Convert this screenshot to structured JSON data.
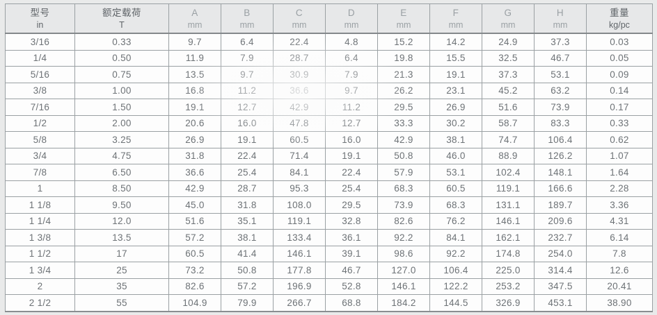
{
  "table": {
    "columns": [
      {
        "key": "model",
        "label": "型号",
        "sub": "in",
        "emphasis": "dark"
      },
      {
        "key": "rated-load",
        "label": "额定载荷",
        "sub": "T",
        "emphasis": "dark"
      },
      {
        "key": "a",
        "label": "A",
        "sub": "mm",
        "emphasis": "light"
      },
      {
        "key": "b",
        "label": "B",
        "sub": "mm",
        "emphasis": "light"
      },
      {
        "key": "c",
        "label": "C",
        "sub": "mm",
        "emphasis": "light"
      },
      {
        "key": "d",
        "label": "D",
        "sub": "mm",
        "emphasis": "light"
      },
      {
        "key": "e",
        "label": "E",
        "sub": "mm",
        "emphasis": "light"
      },
      {
        "key": "f",
        "label": "F",
        "sub": "mm",
        "emphasis": "light"
      },
      {
        "key": "g",
        "label": "G",
        "sub": "mm",
        "emphasis": "light"
      },
      {
        "key": "h",
        "label": "H",
        "sub": "mm",
        "emphasis": "light"
      },
      {
        "key": "weight",
        "label": "重量",
        "sub": "kg/pc",
        "emphasis": "dark"
      }
    ],
    "rows": [
      [
        "3/16",
        "0.33",
        "9.7",
        "6.4",
        "22.4",
        "4.8",
        "15.2",
        "14.2",
        "24.9",
        "37.3",
        "0.03"
      ],
      [
        "1/4",
        "0.50",
        "11.9",
        "7.9",
        "28.7",
        "6.4",
        "19.8",
        "15.5",
        "32.5",
        "46.7",
        "0.05"
      ],
      [
        "5/16",
        "0.75",
        "13.5",
        "9.7",
        "30.9",
        "7.9",
        "21.3",
        "19.1",
        "37.3",
        "53.1",
        "0.09"
      ],
      [
        "3/8",
        "1.00",
        "16.8",
        "11.2",
        "36.6",
        "9.7",
        "26.2",
        "23.1",
        "45.2",
        "63.2",
        "0.14"
      ],
      [
        "7/16",
        "1.50",
        "19.1",
        "12.7",
        "42.9",
        "11.2",
        "29.5",
        "26.9",
        "51.6",
        "73.9",
        "0.17"
      ],
      [
        "1/2",
        "2.00",
        "20.6",
        "16.0",
        "47.8",
        "12.7",
        "33.3",
        "30.2",
        "58.7",
        "83.3",
        "0.33"
      ],
      [
        "5/8",
        "3.25",
        "26.9",
        "19.1",
        "60.5",
        "16.0",
        "42.9",
        "38.1",
        "74.7",
        "106.4",
        "0.62"
      ],
      [
        "3/4",
        "4.75",
        "31.8",
        "22.4",
        "71.4",
        "19.1",
        "50.8",
        "46.0",
        "88.9",
        "126.2",
        "1.07"
      ],
      [
        "7/8",
        "6.50",
        "36.6",
        "25.4",
        "84.1",
        "22.4",
        "57.9",
        "53.1",
        "102.4",
        "148.1",
        "1.64"
      ],
      [
        "1",
        "8.50",
        "42.9",
        "28.7",
        "95.3",
        "25.4",
        "68.3",
        "60.5",
        "119.1",
        "166.6",
        "2.28"
      ],
      [
        "1 1/8",
        "9.50",
        "45.0",
        "31.8",
        "108.0",
        "29.5",
        "73.9",
        "68.3",
        "131.1",
        "189.7",
        "3.36"
      ],
      [
        "1 1/4",
        "12.0",
        "51.6",
        "35.1",
        "119.1",
        "32.8",
        "82.6",
        "76.2",
        "146.1",
        "209.6",
        "4.31"
      ],
      [
        "1 3/8",
        "13.5",
        "57.2",
        "38.1",
        "133.4",
        "36.1",
        "92.2",
        "84.1",
        "162.1",
        "232.7",
        "6.14"
      ],
      [
        "1 1/2",
        "17",
        "60.5",
        "41.4",
        "146.1",
        "39.1",
        "98.6",
        "92.2",
        "174.8",
        "254.0",
        "7.8"
      ],
      [
        "1 3/4",
        "25",
        "73.2",
        "50.8",
        "177.8",
        "46.7",
        "127.0",
        "106.4",
        "225.0",
        "314.4",
        "12.6"
      ],
      [
        "2",
        "35",
        "82.6",
        "57.2",
        "196.9",
        "52.8",
        "146.1",
        "122.2",
        "253.2",
        "347.5",
        "20.41"
      ],
      [
        "2 1/2",
        "55",
        "104.9",
        "79.9",
        "266.7",
        "68.8",
        "184.2",
        "144.5",
        "326.9",
        "453.1",
        "38.90"
      ]
    ]
  },
  "colors": {
    "page_background": "#e9eaea",
    "row_background": "#fdfdfd",
    "header_background": "#e7e8e9",
    "border": "#9aa0a3",
    "header_text_dark": "#5f6468",
    "header_text_light": "#9aa0a4",
    "cell_text": "#6d7276"
  }
}
